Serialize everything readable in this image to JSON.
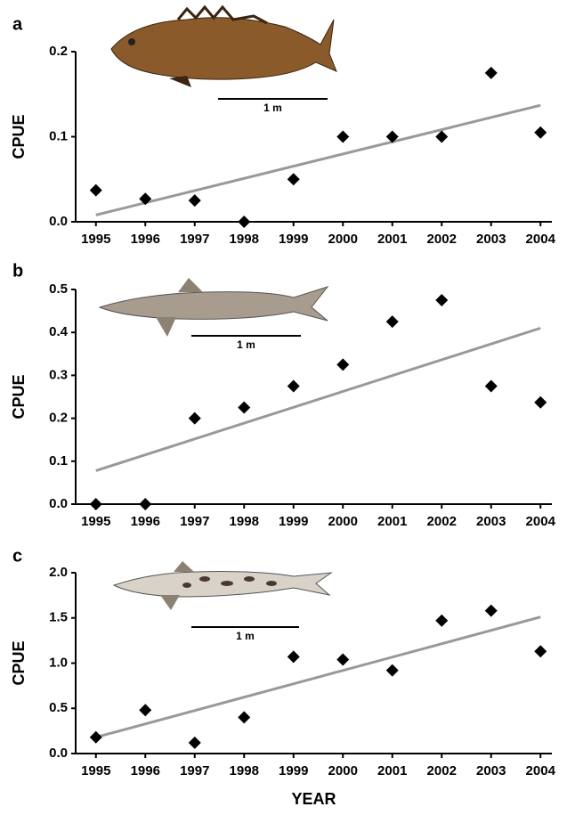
{
  "chart_data": [
    {
      "type": "scatter",
      "panel_label": "a",
      "ylabel": "CPUE",
      "scale_label": "1 m",
      "x": [
        1995,
        1996,
        1997,
        1998,
        1999,
        2000,
        2001,
        2002,
        2003,
        2004
      ],
      "values": [
        0.037,
        0.027,
        0.025,
        0.0,
        0.05,
        0.1,
        0.1,
        0.1,
        0.175,
        0.105
      ],
      "color": "#000000",
      "trend": {
        "x": [
          1995,
          2004
        ],
        "values": [
          0.008,
          0.137
        ],
        "color": "#999999"
      },
      "xlim": [
        1994.59,
        2004.23
      ],
      "xticks": [
        1995,
        1996,
        1997,
        1998,
        1999,
        2000,
        2001,
        2002,
        2003,
        2004
      ],
      "ylim": [
        0,
        0.2
      ],
      "yticks": [
        {
          "value": 0,
          "label": "0.0"
        },
        0.1,
        0.2
      ]
    },
    {
      "type": "scatter",
      "panel_label": "b",
      "ylabel": "CPUE",
      "scale_label": "1 m",
      "x": [
        1995,
        1996,
        1997,
        1998,
        1999,
        2000,
        2001,
        2002,
        2003,
        2004
      ],
      "values": [
        0.0,
        0.0,
        0.2,
        0.225,
        0.275,
        0.325,
        0.425,
        0.475,
        0.275,
        0.237
      ],
      "color": "#000000",
      "trend": {
        "x": [
          1995,
          2004
        ],
        "values": [
          0.078,
          0.41
        ],
        "color": "#999999"
      },
      "xlim": [
        1994.59,
        2004.23
      ],
      "xticks": [
        1995,
        1996,
        1997,
        1998,
        1999,
        2000,
        2001,
        2002,
        2003,
        2004
      ],
      "ylim": [
        0,
        0.5
      ],
      "yticks": [
        {
          "value": 0,
          "label": "0.0"
        },
        0.1,
        0.2,
        0.3,
        0.4,
        0.5
      ]
    },
    {
      "type": "scatter",
      "panel_label": "c",
      "ylabel": "CPUE",
      "scale_label": "1 m",
      "xlabel": "YEAR",
      "x": [
        1995,
        1996,
        1997,
        1998,
        1999,
        2000,
        2001,
        2002,
        2003,
        2004
      ],
      "values": [
        0.18,
        0.48,
        0.12,
        0.4,
        1.07,
        1.04,
        0.92,
        1.47,
        1.58,
        1.13
      ],
      "color": "#000000",
      "trend": {
        "x": [
          1995,
          2004
        ],
        "values": [
          0.18,
          1.51
        ],
        "color": "#999999"
      },
      "xlim": [
        1994.59,
        2004.23
      ],
      "xticks": [
        1995,
        1996,
        1997,
        1998,
        1999,
        2000,
        2001,
        2002,
        2003,
        2004
      ],
      "ylim": [
        0,
        2
      ],
      "yticks": [
        {
          "value": 0,
          "label": "0.0"
        },
        0.5,
        {
          "value": 1,
          "label": "1.0"
        },
        1.5,
        {
          "value": 2,
          "label": "2.0"
        }
      ]
    }
  ]
}
